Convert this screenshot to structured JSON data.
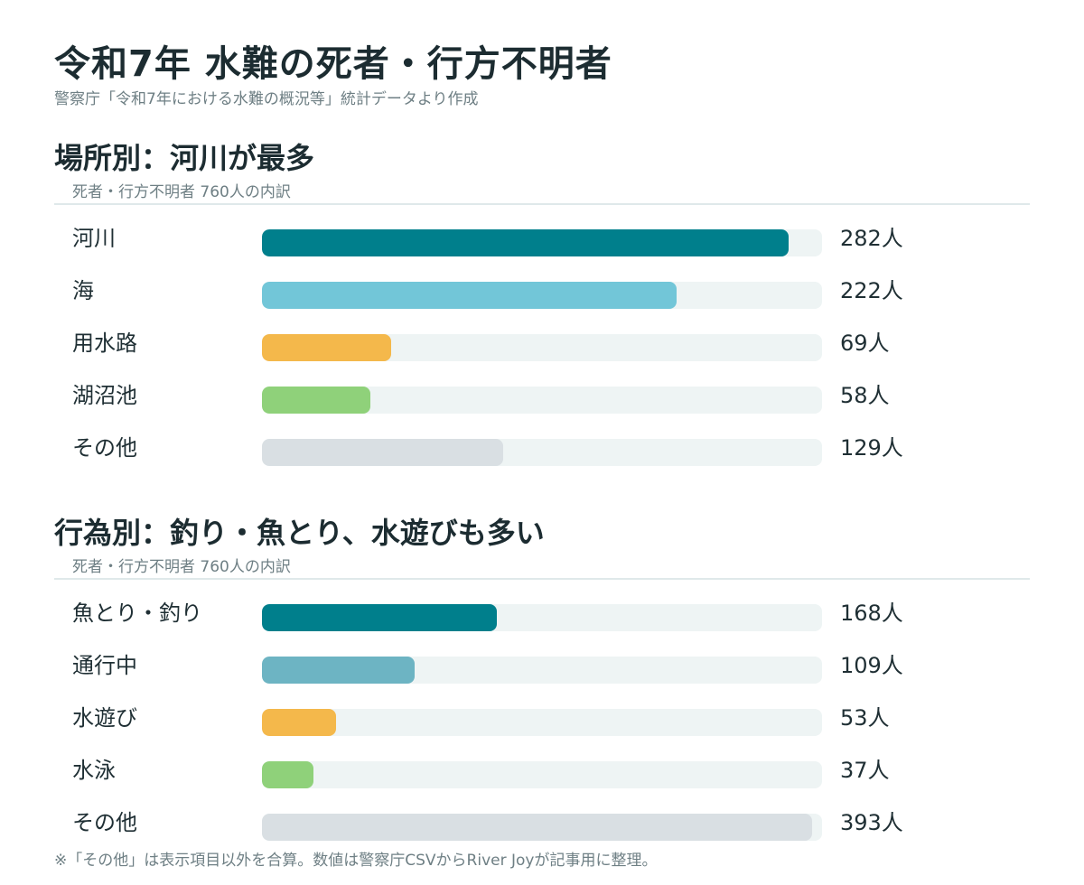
{
  "title": "令和7年 水難の死者・行方不明者",
  "subtitle": "警察庁「令和7年における水難の概況等」統計データより作成",
  "footnote": "※「その他」は表示項目以外を合算。数値は警察庁CSVからRiver Joyが記事用に整理。",
  "chart_data": [
    {
      "type": "bar",
      "orientation": "horizontal",
      "title": "場所別：河川が最多",
      "subtitle": "死者・行方不明者 760人の内訳",
      "unit": "人",
      "xlim": [
        0,
        300
      ],
      "grid": false,
      "categories": [
        "河川",
        "海",
        "用水路",
        "湖沼池",
        "その他"
      ],
      "values": [
        282,
        222,
        69,
        58,
        129
      ],
      "value_labels": [
        "282人",
        "222人",
        "69人",
        "58人",
        "129人"
      ],
      "colors": [
        "#007f8c",
        "#72c6d8",
        "#f4b84b",
        "#8fd17a",
        "#d9dfe3"
      ]
    },
    {
      "type": "bar",
      "orientation": "horizontal",
      "title": "行為別：釣り・魚とり、水遊びも多い",
      "subtitle": "死者・行方不明者 760人の内訳",
      "unit": "人",
      "xlim": [
        0,
        400
      ],
      "grid": false,
      "categories": [
        "魚とり・釣り",
        "通行中",
        "水遊び",
        "水泳",
        "その他"
      ],
      "values": [
        168,
        109,
        53,
        37,
        393
      ],
      "value_labels": [
        "168人",
        "109人",
        "53人",
        "37人",
        "393人"
      ],
      "colors": [
        "#007f8c",
        "#6db4c3",
        "#f4b84b",
        "#8fd17a",
        "#d9dfe3"
      ]
    }
  ]
}
